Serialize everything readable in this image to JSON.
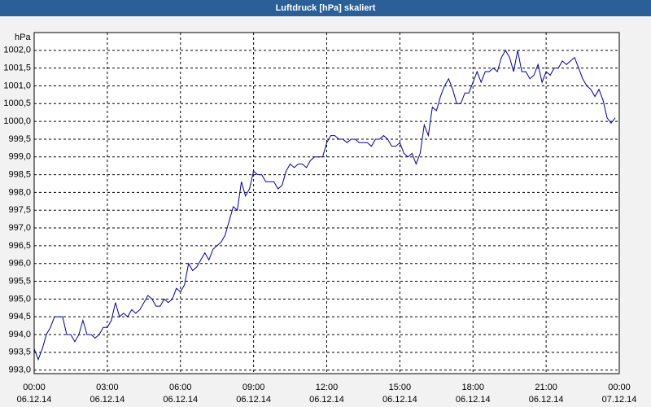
{
  "chart_data": {
    "type": "line",
    "title": "Luftdruck [hPa] skaliert",
    "y_label": "hPa",
    "x": [
      0,
      10,
      20,
      30,
      40,
      50,
      60,
      70,
      80,
      90,
      100,
      110,
      120,
      130,
      140,
      150,
      160,
      170,
      180,
      190,
      200,
      210,
      220,
      230,
      240,
      250,
      260,
      270,
      280,
      290,
      300,
      310,
      320,
      330,
      340,
      350,
      360,
      370,
      380,
      390,
      400,
      410,
      420,
      430,
      440,
      450,
      460,
      470,
      480,
      490,
      500,
      510,
      520,
      530,
      540,
      550,
      560,
      570,
      580,
      590,
      600,
      610,
      620,
      630,
      640,
      650,
      660,
      670,
      680,
      690,
      700,
      710,
      720,
      730,
      740,
      750,
      760,
      770,
      780,
      790,
      800,
      810,
      820,
      830,
      840,
      850,
      860,
      870,
      880,
      890,
      900,
      910,
      920,
      930,
      940,
      950,
      960,
      970,
      980,
      990,
      1000,
      1010,
      1020,
      1030,
      1040,
      1050,
      1060,
      1070,
      1080,
      1090,
      1100,
      1110,
      1120,
      1130,
      1140,
      1150,
      1160,
      1170,
      1180,
      1190,
      1200,
      1210,
      1220,
      1230,
      1240,
      1250,
      1260,
      1270,
      1280,
      1290,
      1300,
      1310,
      1320,
      1330,
      1340,
      1350,
      1360,
      1370,
      1380,
      1390,
      1400,
      1410,
      1420,
      1430
    ],
    "series": [
      {
        "name": "Luftdruck",
        "color": "#0000a0",
        "values": [
          993.6,
          993.3,
          993.6,
          994.0,
          994.2,
          994.5,
          994.5,
          994.5,
          994.0,
          994.0,
          993.8,
          994.0,
          994.4,
          994.0,
          994.0,
          993.9,
          994.0,
          994.2,
          994.2,
          994.4,
          994.9,
          994.5,
          994.6,
          994.5,
          994.7,
          994.6,
          994.7,
          994.9,
          995.1,
          995.0,
          994.8,
          994.8,
          995.0,
          994.9,
          995.0,
          995.3,
          995.2,
          995.4,
          996.0,
          995.8,
          995.9,
          996.1,
          996.3,
          996.1,
          996.4,
          996.5,
          996.6,
          996.8,
          997.2,
          997.6,
          997.5,
          998.3,
          997.9,
          998.1,
          998.6,
          998.5,
          998.5,
          998.3,
          998.3,
          998.3,
          998.1,
          998.2,
          998.6,
          998.8,
          998.7,
          998.8,
          998.8,
          998.7,
          998.9,
          999.0,
          999.0,
          999.0,
          999.4,
          999.6,
          999.6,
          999.5,
          999.5,
          999.4,
          999.5,
          999.5,
          999.4,
          999.4,
          999.4,
          999.3,
          999.5,
          999.5,
          999.6,
          999.5,
          999.3,
          999.3,
          999.4,
          999.1,
          999.0,
          999.1,
          998.8,
          999.1,
          999.9,
          999.6,
          1000.4,
          1000.3,
          1000.7,
          1001.0,
          1001.2,
          1000.9,
          1000.5,
          1000.5,
          1000.8,
          1000.8,
          1001.1,
          1001.4,
          1001.1,
          1001.4,
          1001.4,
          1001.5,
          1001.4,
          1001.8,
          1002.0,
          1001.8,
          1001.4,
          1002.0,
          1001.4,
          1001.4,
          1001.2,
          1001.3,
          1001.6,
          1001.1,
          1001.4,
          1001.3,
          1001.5,
          1001.5,
          1001.7,
          1001.6,
          1001.7,
          1001.8,
          1001.5,
          1001.2,
          1001.0,
          1000.9,
          1000.7,
          1000.9,
          1000.6,
          1000.1,
          999.95,
          1000.1
        ]
      }
    ],
    "xlim": [
      0,
      1440
    ],
    "xticks": [
      {
        "value": 0,
        "label": "00:00",
        "sublabel": "06.12.14"
      },
      {
        "value": 180,
        "label": "03:00",
        "sublabel": "06.12.14"
      },
      {
        "value": 360,
        "label": "06:00",
        "sublabel": "06.12.14"
      },
      {
        "value": 540,
        "label": "09:00",
        "sublabel": "06.12.14"
      },
      {
        "value": 720,
        "label": "12:00",
        "sublabel": "06.12.14"
      },
      {
        "value": 900,
        "label": "15:00",
        "sublabel": "06.12.14"
      },
      {
        "value": 1080,
        "label": "18:00",
        "sublabel": "06.12.14"
      },
      {
        "value": 1260,
        "label": "21:00",
        "sublabel": "06.12.14"
      },
      {
        "value": 1440,
        "label": "00:00",
        "sublabel": "07.12.14"
      }
    ],
    "ylim": [
      992.9,
      1002.5
    ],
    "yticks": [
      {
        "value": 993,
        "label": "993,0"
      },
      {
        "value": 993.5,
        "label": "993,5"
      },
      {
        "value": 994,
        "label": "994,0"
      },
      {
        "value": 994.5,
        "label": "994,5"
      },
      {
        "value": 995,
        "label": "995,0"
      },
      {
        "value": 995.5,
        "label": "995,5"
      },
      {
        "value": 996,
        "label": "996,0"
      },
      {
        "value": 996.5,
        "label": "996,5"
      },
      {
        "value": 997,
        "label": "997,0"
      },
      {
        "value": 997.5,
        "label": "997,5"
      },
      {
        "value": 998,
        "label": "998,0"
      },
      {
        "value": 998.5,
        "label": "998,5"
      },
      {
        "value": 999,
        "label": "999,0"
      },
      {
        "value": 999.5,
        "label": "999,5"
      },
      {
        "value": 1000,
        "label": "1000,0"
      },
      {
        "value": 1000.5,
        "label": "1000,5"
      },
      {
        "value": 1001,
        "label": "1001,0"
      },
      {
        "value": 1001.5,
        "label": "1001,5"
      },
      {
        "value": 1002,
        "label": "1002,0"
      }
    ],
    "grid": true
  }
}
